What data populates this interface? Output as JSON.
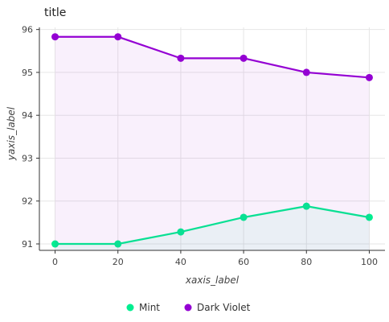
{
  "chart_data": {
    "type": "area",
    "title": "title",
    "xlabel": "xaxis_label",
    "ylabel": "yaxis_label",
    "xlim": [
      -5,
      105
    ],
    "ylim": [
      90.85,
      96.05
    ],
    "x_ticks": [
      0,
      20,
      40,
      60,
      80,
      100
    ],
    "y_ticks": [
      91,
      92,
      93,
      94,
      95,
      96
    ],
    "grid": true,
    "legend_position": "bottom",
    "series": [
      {
        "name": "Mint",
        "color": "#00EE90",
        "x": [
          0,
          20,
          40,
          60,
          80,
          100
        ],
        "values": [
          91.0,
          91.0,
          91.28,
          91.62,
          91.88,
          91.62
        ]
      },
      {
        "name": "Dark Violet",
        "color": "#9400D3",
        "x": [
          0,
          20,
          40,
          60,
          80,
          100
        ],
        "values": [
          95.83,
          95.83,
          95.33,
          95.33,
          95.0,
          94.88
        ]
      }
    ]
  }
}
